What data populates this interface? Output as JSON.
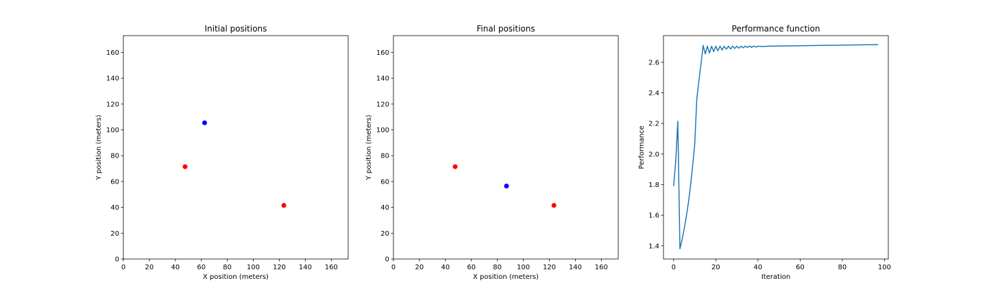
{
  "chart_data": [
    {
      "type": "scatter",
      "title": "Initial positions",
      "xlabel": "X position (meters)",
      "ylabel": "Y position (meters)",
      "xlim": [
        0,
        173
      ],
      "ylim": [
        0,
        173
      ],
      "xticks": [
        0,
        20,
        40,
        60,
        80,
        100,
        120,
        140,
        160
      ],
      "yticks": [
        0,
        20,
        40,
        60,
        80,
        100,
        120,
        140,
        160
      ],
      "grid": false,
      "points": [
        {
          "x": 47.5,
          "y": 71.5,
          "color": "#ff0000"
        },
        {
          "x": 123.5,
          "y": 41.5,
          "color": "#ff0000"
        },
        {
          "x": 62.5,
          "y": 105.5,
          "color": "#0000ff"
        }
      ]
    },
    {
      "type": "scatter",
      "title": "Final positions",
      "xlabel": "X position (meters)",
      "ylabel": "Y position (meters)",
      "xlim": [
        0,
        173
      ],
      "ylim": [
        0,
        173
      ],
      "xticks": [
        0,
        20,
        40,
        60,
        80,
        100,
        120,
        140,
        160
      ],
      "yticks": [
        0,
        20,
        40,
        60,
        80,
        100,
        120,
        140,
        160
      ],
      "grid": false,
      "points": [
        {
          "x": 47.5,
          "y": 71.5,
          "color": "#ff0000"
        },
        {
          "x": 123.5,
          "y": 41.5,
          "color": "#ff0000"
        },
        {
          "x": 87.0,
          "y": 56.5,
          "color": "#0000ff"
        }
      ]
    },
    {
      "type": "line",
      "title": "Performance function",
      "xlabel": "Iteration",
      "ylabel": "Performance",
      "xlim": [
        -4.8,
        101.8
      ],
      "ylim": [
        1.314,
        2.774
      ],
      "xticks": [
        0,
        20,
        40,
        60,
        80,
        100
      ],
      "yticks": [
        1.4,
        1.6,
        1.8,
        2.0,
        2.2,
        2.4,
        2.6
      ],
      "ytick_labels": [
        "1.4",
        "1.6",
        "1.8",
        "2.0",
        "2.2",
        "2.4",
        "2.6"
      ],
      "grid": false,
      "color": "#1f77b4",
      "x": [
        0,
        1,
        2,
        3,
        4,
        5,
        6,
        7,
        8,
        9,
        10,
        11,
        12,
        13,
        14,
        15,
        16,
        17,
        18,
        19,
        20,
        21,
        22,
        23,
        24,
        25,
        26,
        27,
        28,
        29,
        30,
        31,
        32,
        33,
        34,
        35,
        36,
        37,
        38,
        39,
        40,
        42,
        45,
        50,
        55,
        60,
        65,
        70,
        75,
        80,
        85,
        90,
        97
      ],
      "y": [
        1.79,
        1.95,
        2.215,
        1.38,
        1.44,
        1.51,
        1.59,
        1.68,
        1.79,
        1.92,
        2.06,
        2.36,
        2.48,
        2.59,
        2.71,
        2.655,
        2.705,
        2.66,
        2.705,
        2.67,
        2.705,
        2.675,
        2.705,
        2.68,
        2.705,
        2.685,
        2.705,
        2.687,
        2.705,
        2.69,
        2.705,
        2.692,
        2.705,
        2.694,
        2.706,
        2.696,
        2.706,
        2.697,
        2.706,
        2.699,
        2.705,
        2.703,
        2.705,
        2.706,
        2.707,
        2.708,
        2.709,
        2.71,
        2.711,
        2.712,
        2.713,
        2.714,
        2.715
      ]
    }
  ]
}
